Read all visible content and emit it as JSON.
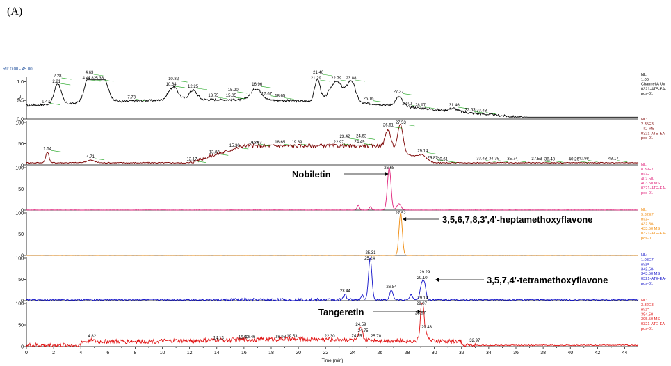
{
  "figure_label": "(A)",
  "range_label": "RT: 0.00 - 45.00",
  "colors": {
    "panel_1": "#000000",
    "panel_2": "#7a0000",
    "panel_3": "#e0217a",
    "panel_4": "#f08a0a",
    "panel_5": "#1010c8",
    "panel_6": "#e01010",
    "axis": "#000000",
    "peak_label_underline": "#19a319",
    "side_text_5": "#1f4f9c"
  },
  "chart_data": {
    "type": "line",
    "xlabel": "Time (min)",
    "xlim": [
      0,
      45
    ],
    "xticks": [
      0,
      1,
      2,
      3,
      4,
      5,
      6,
      7,
      8,
      9,
      10,
      11,
      12,
      13,
      14,
      15,
      16,
      17,
      18,
      19,
      20,
      21,
      22,
      23,
      24,
      25,
      26,
      27,
      28,
      29,
      30,
      31,
      32,
      33,
      34,
      35,
      36,
      37,
      38,
      39,
      40,
      41,
      42,
      43,
      44
    ],
    "xtick_labels": [
      "0",
      "2",
      "4",
      "6",
      "8",
      "10",
      "12",
      "14",
      "16",
      "18",
      "20",
      "22",
      "24",
      "26",
      "28",
      "30",
      "32",
      "34",
      "36",
      "38",
      "40",
      "42",
      "44"
    ],
    "panels": [
      {
        "ylabel": "uAU",
        "ytick_labels": [
          "0.0",
          "0.5",
          "1.0"
        ],
        "ylim": [
          0,
          1.1
        ],
        "side_text": [
          "NL:",
          "1.00",
          "Channel A UV",
          "0321-ATE-EA-",
          "pos-01"
        ],
        "color_key": "panel_1",
        "peak_labels": [
          {
            "x": 1.43,
            "label": "1.43"
          },
          {
            "x": 2.21,
            "label": "2.21"
          },
          {
            "x": 2.28,
            "label": "2.28"
          },
          {
            "x": 4.42,
            "label": "4.42"
          },
          {
            "x": 4.82,
            "label": "4.82"
          },
          {
            "x": 4.63,
            "label": "4.63"
          },
          {
            "x": 5.38,
            "label": "5.38"
          },
          {
            "x": 7.73,
            "label": "7.73"
          },
          {
            "x": 10.64,
            "label": "10.64"
          },
          {
            "x": 10.82,
            "label": "10.82"
          },
          {
            "x": 12.25,
            "label": "12.25"
          },
          {
            "x": 13.75,
            "label": "13.75"
          },
          {
            "x": 15.05,
            "label": "15.05"
          },
          {
            "x": 15.2,
            "label": "15.20"
          },
          {
            "x": 16.96,
            "label": "16.96"
          },
          {
            "x": 17.67,
            "label": "17.67"
          },
          {
            "x": 18.65,
            "label": "18.65"
          },
          {
            "x": 21.29,
            "label": "21.29"
          },
          {
            "x": 21.46,
            "label": "21.46"
          },
          {
            "x": 22.79,
            "label": "22.79"
          },
          {
            "x": 23.88,
            "label": "23.88"
          },
          {
            "x": 25.16,
            "label": "25.16"
          },
          {
            "x": 27.37,
            "label": "27.37"
          },
          {
            "x": 28.01,
            "label": "28.01"
          },
          {
            "x": 28.97,
            "label": "28.97"
          },
          {
            "x": 31.46,
            "label": "31.46"
          },
          {
            "x": 32.63,
            "label": "32.63"
          },
          {
            "x": 33.48,
            "label": "33.48"
          }
        ]
      },
      {
        "ylabel": "",
        "ytick_labels": [
          "0",
          "50",
          "100"
        ],
        "ylim": [
          0,
          100
        ],
        "side_text": [
          "NL:",
          "2.35E8",
          "TIC MS",
          "0321-ATE-EA-",
          "pos-01"
        ],
        "color_key": "panel_2",
        "peak_labels": [
          {
            "x": 1.54,
            "label": "1.54"
          },
          {
            "x": 4.71,
            "label": "4.71"
          },
          {
            "x": 12.17,
            "label": "12.17"
          },
          {
            "x": 13.82,
            "label": "13.82"
          },
          {
            "x": 15.3,
            "label": "15.30"
          },
          {
            "x": 16.74,
            "label": "16.74"
          },
          {
            "x": 16.93,
            "label": "16.93"
          },
          {
            "x": 18.65,
            "label": "18.65"
          },
          {
            "x": 19.89,
            "label": "19.89"
          },
          {
            "x": 22.97,
            "label": "22.97"
          },
          {
            "x": 23.42,
            "label": "23.42"
          },
          {
            "x": 24.49,
            "label": "24.49"
          },
          {
            "x": 24.63,
            "label": "24.63"
          },
          {
            "x": 26.61,
            "label": "26.61"
          },
          {
            "x": 27.53,
            "label": "27.53"
          },
          {
            "x": 29.14,
            "label": "29.14"
          },
          {
            "x": 29.87,
            "label": "29.87"
          },
          {
            "x": 30.61,
            "label": "30.61"
          },
          {
            "x": 33.48,
            "label": "33.48"
          },
          {
            "x": 34.39,
            "label": "34.39"
          },
          {
            "x": 35.74,
            "label": "35.74"
          },
          {
            "x": 37.53,
            "label": "37.53"
          },
          {
            "x": 38.48,
            "label": "38.48"
          },
          {
            "x": 40.26,
            "label": "40.26"
          },
          {
            "x": 40.98,
            "label": "40.98"
          },
          {
            "x": 43.17,
            "label": "43.17"
          }
        ]
      },
      {
        "ylabel": "",
        "ytick_labels": [
          "0",
          "50",
          "100"
        ],
        "ylim": [
          0,
          100
        ],
        "side_text": [
          "NL:",
          "8.39E7",
          "m/z=",
          "402.50-",
          "403.50 MS",
          "0321-ATE-EA-",
          "pos-01"
        ],
        "color_key": "panel_3",
        "peak_labels": [
          {
            "x": 26.68,
            "label": "26.68"
          }
        ],
        "annotation": {
          "text": "Nobiletin",
          "x": 26.68
        }
      },
      {
        "ylabel": "",
        "ytick_labels": [
          "0",
          "50",
          "100"
        ],
        "ylim": [
          0,
          100
        ],
        "side_text": [
          "NL:",
          "9.32E7",
          "m/z=",
          "432.50-",
          "433.50 MS",
          "0321-ATE-EA-",
          "pos-01"
        ],
        "color_key": "panel_4",
        "peak_labels": [
          {
            "x": 27.52,
            "label": "27.52"
          }
        ],
        "annotation": {
          "text": "3,5,6,7,8,3',4'-heptamethoxyflavone",
          "x": 27.52
        }
      },
      {
        "ylabel": "",
        "ytick_labels": [
          "0",
          "50",
          "100"
        ],
        "ylim": [
          0,
          100
        ],
        "side_text": [
          "NL:",
          "1.08E7",
          "m/z=",
          "342.50-",
          "343.50 MS",
          "0321-ATE-EA-",
          "pos-01"
        ],
        "color_key": "panel_5",
        "peak_labels": [
          {
            "x": 23.44,
            "label": "23.44"
          },
          {
            "x": 25.24,
            "label": "25.24"
          },
          {
            "x": 25.31,
            "label": "25.31"
          },
          {
            "x": 26.84,
            "label": "26.84"
          },
          {
            "x": 29.1,
            "label": "29.10"
          },
          {
            "x": 29.29,
            "label": "29.29"
          }
        ],
        "annotation": {
          "text": "3,5,7,4'-tetramethoxyflavone",
          "x": 29.1
        }
      },
      {
        "ylabel": "",
        "ytick_labels": [
          "0",
          "50",
          "100"
        ],
        "ylim": [
          0,
          100
        ],
        "side_text": [
          "NL:",
          "3.32E8",
          "m/z=",
          "394.50-",
          "395.50 MS",
          "0321-ATE-EA-",
          "pos-01"
        ],
        "color_key": "panel_6",
        "peak_labels": [
          {
            "x": 4.82,
            "label": "4.82"
          },
          {
            "x": 14.13,
            "label": "14.13"
          },
          {
            "x": 15.97,
            "label": "15.97"
          },
          {
            "x": 16.46,
            "label": "16.46"
          },
          {
            "x": 18.69,
            "label": "18.69"
          },
          {
            "x": 19.53,
            "label": "19.53"
          },
          {
            "x": 22.3,
            "label": "22.30"
          },
          {
            "x": 24.29,
            "label": "24.29"
          },
          {
            "x": 24.59,
            "label": "24.59"
          },
          {
            "x": 24.75,
            "label": "24.75"
          },
          {
            "x": 25.7,
            "label": "25.70"
          },
          {
            "x": 28.97,
            "label": "28.97"
          },
          {
            "x": 29.07,
            "label": "29.07"
          },
          {
            "x": 29.14,
            "label": "29.14"
          },
          {
            "x": 29.43,
            "label": "29.43"
          },
          {
            "x": 32.97,
            "label": "32.97"
          }
        ],
        "annotation": {
          "text": "Tangeretin",
          "x": 29.07
        }
      }
    ]
  }
}
